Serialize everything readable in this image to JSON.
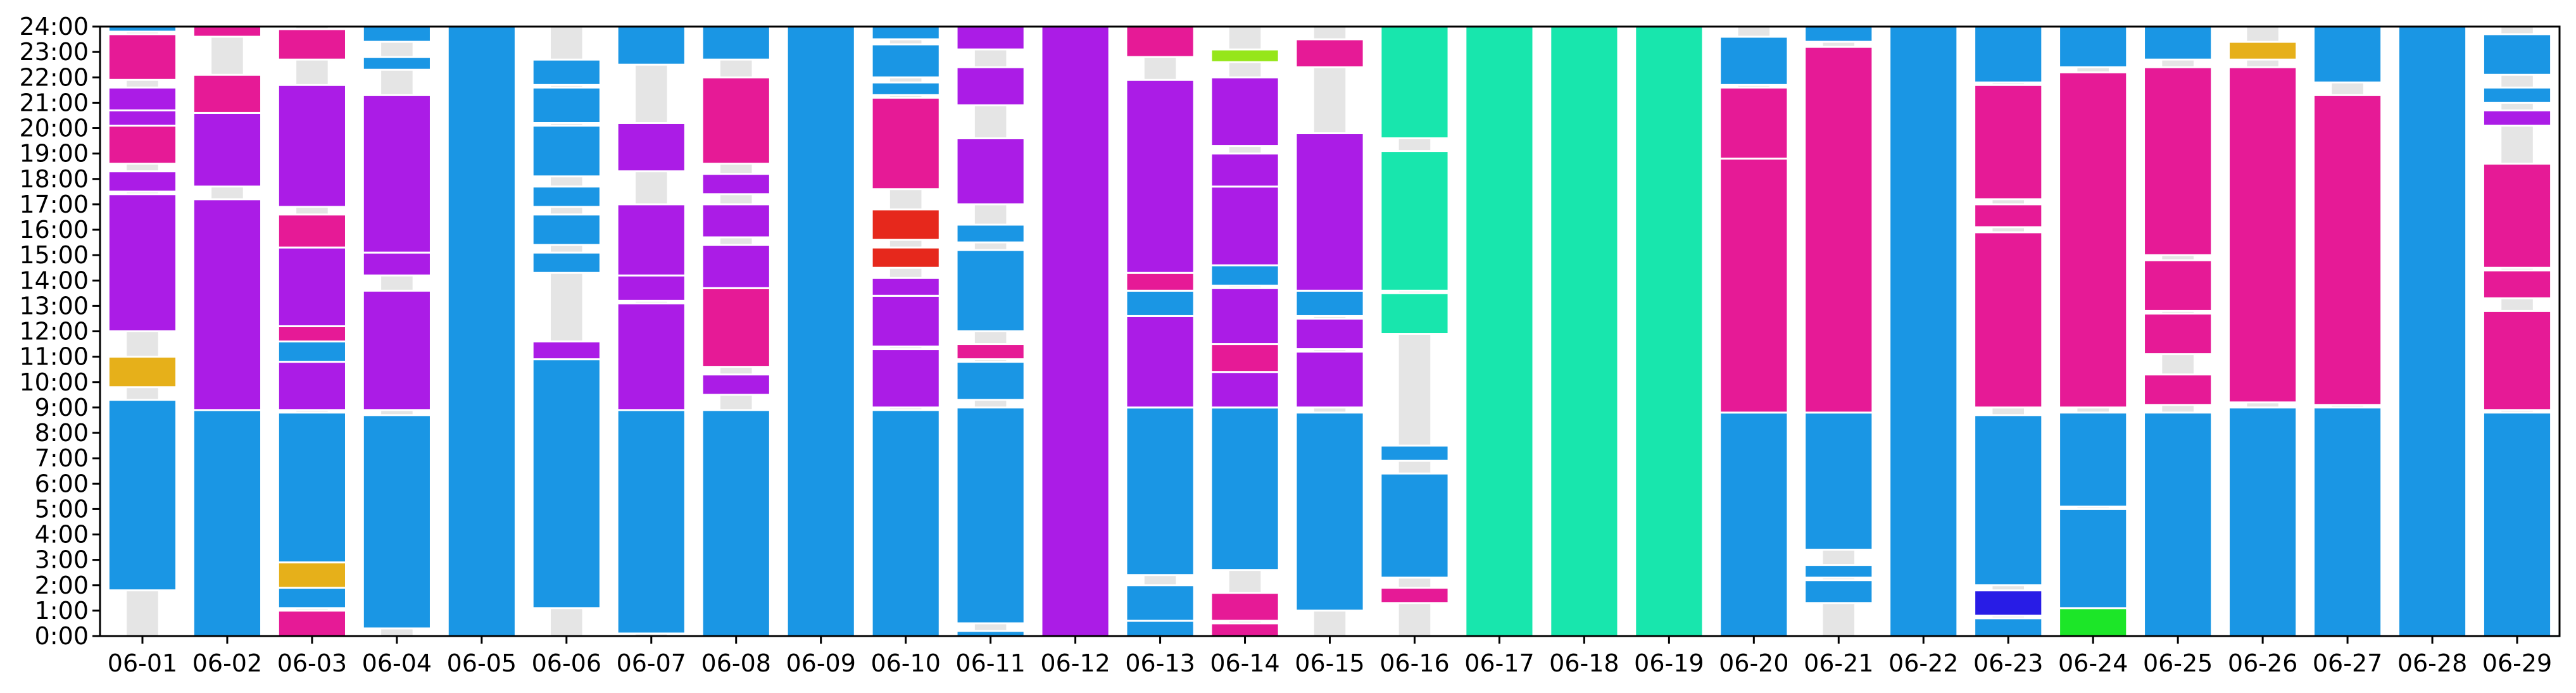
{
  "chart_data": {
    "type": "bar",
    "title": "",
    "xlabel": "",
    "ylabel": "",
    "ylim": [
      0,
      24
    ],
    "grid": false,
    "legend": "none",
    "y_ticks": [
      "0:00",
      "1:00",
      "2:00",
      "3:00",
      "4:00",
      "5:00",
      "6:00",
      "7:00",
      "8:00",
      "9:00",
      "10:00",
      "11:00",
      "12:00",
      "13:00",
      "14:00",
      "15:00",
      "16:00",
      "17:00",
      "18:00",
      "19:00",
      "20:00",
      "21:00",
      "22:00",
      "23:00",
      "24:00"
    ],
    "categories": [
      "06-01",
      "06-02",
      "06-03",
      "06-04",
      "06-05",
      "06-06",
      "06-07",
      "06-08",
      "06-09",
      "06-10",
      "06-11",
      "06-12",
      "06-13",
      "06-14",
      "06-15",
      "06-16",
      "06-17",
      "06-18",
      "06-19",
      "06-20",
      "06-21",
      "06-22",
      "06-23",
      "06-24",
      "06-25",
      "06-26",
      "06-27",
      "06-28",
      "06-29"
    ],
    "colors": {
      "blue": "#1a96e4",
      "purple": "#ab1ce6",
      "pink": "#e61a96",
      "gold": "#e6b01a",
      "red": "#e6281c",
      "lime": "#96e61a",
      "teal": "#18e6ad",
      "navy": "#281ce6",
      "green": "#1ce628",
      "gap": "#e5e5e5"
    },
    "days": [
      {
        "date": "06-01",
        "segments": [
          [
            1.8,
            9.3,
            "blue"
          ],
          [
            9.8,
            11.0,
            "gold"
          ],
          [
            12.0,
            17.4,
            "purple"
          ],
          [
            17.5,
            18.3,
            "purple"
          ],
          [
            18.6,
            20.1,
            "pink"
          ],
          [
            20.1,
            20.7,
            "purple"
          ],
          [
            20.7,
            21.6,
            "purple"
          ],
          [
            21.9,
            23.7,
            "pink"
          ],
          [
            23.8,
            24.0,
            "blue"
          ]
        ]
      },
      {
        "date": "06-02",
        "segments": [
          [
            0.0,
            8.9,
            "blue"
          ],
          [
            8.9,
            17.2,
            "purple"
          ],
          [
            17.7,
            20.6,
            "purple"
          ],
          [
            20.6,
            22.1,
            "pink"
          ],
          [
            23.6,
            24.0,
            "pink"
          ]
        ]
      },
      {
        "date": "06-03",
        "segments": [
          [
            0.0,
            1.0,
            "pink"
          ],
          [
            1.1,
            1.9,
            "blue"
          ],
          [
            1.9,
            2.9,
            "gold"
          ],
          [
            2.9,
            8.8,
            "blue"
          ],
          [
            8.9,
            10.8,
            "purple"
          ],
          [
            10.8,
            11.6,
            "blue"
          ],
          [
            11.6,
            12.2,
            "pink"
          ],
          [
            12.2,
            15.3,
            "purple"
          ],
          [
            15.3,
            16.6,
            "pink"
          ],
          [
            16.9,
            21.7,
            "purple"
          ],
          [
            22.7,
            23.9,
            "pink"
          ]
        ]
      },
      {
        "date": "06-04",
        "segments": [
          [
            0.3,
            8.7,
            "blue"
          ],
          [
            8.9,
            13.6,
            "purple"
          ],
          [
            14.2,
            15.1,
            "purple"
          ],
          [
            15.1,
            21.3,
            "purple"
          ],
          [
            22.3,
            22.8,
            "blue"
          ],
          [
            23.4,
            24.0,
            "blue"
          ]
        ]
      },
      {
        "date": "06-05",
        "segments": [
          [
            0.0,
            24.0,
            "blue"
          ]
        ]
      },
      {
        "date": "06-06",
        "segments": [
          [
            1.1,
            10.9,
            "blue"
          ],
          [
            10.9,
            11.6,
            "purple"
          ],
          [
            14.3,
            15.1,
            "blue"
          ],
          [
            15.4,
            16.6,
            "blue"
          ],
          [
            16.9,
            17.7,
            "blue"
          ],
          [
            18.1,
            20.1,
            "blue"
          ],
          [
            20.2,
            21.6,
            "blue"
          ],
          [
            21.7,
            22.7,
            "blue"
          ]
        ]
      },
      {
        "date": "06-07",
        "segments": [
          [
            0.1,
            8.9,
            "blue"
          ],
          [
            8.9,
            13.1,
            "purple"
          ],
          [
            13.2,
            14.2,
            "purple"
          ],
          [
            14.2,
            17.0,
            "purple"
          ],
          [
            18.3,
            20.2,
            "purple"
          ],
          [
            22.5,
            24.0,
            "blue"
          ]
        ]
      },
      {
        "date": "06-08",
        "segments": [
          [
            0.0,
            8.9,
            "blue"
          ],
          [
            9.5,
            10.3,
            "purple"
          ],
          [
            10.6,
            13.7,
            "pink"
          ],
          [
            13.7,
            15.4,
            "purple"
          ],
          [
            15.7,
            17.0,
            "purple"
          ],
          [
            17.4,
            18.2,
            "purple"
          ],
          [
            18.6,
            22.0,
            "pink"
          ],
          [
            22.7,
            24.0,
            "blue"
          ]
        ]
      },
      {
        "date": "06-09",
        "segments": [
          [
            0.0,
            24.0,
            "blue"
          ]
        ]
      },
      {
        "date": "06-10",
        "segments": [
          [
            0.0,
            8.9,
            "blue"
          ],
          [
            9.0,
            11.3,
            "purple"
          ],
          [
            11.4,
            13.4,
            "purple"
          ],
          [
            13.4,
            14.1,
            "purple"
          ],
          [
            14.5,
            15.3,
            "red"
          ],
          [
            15.6,
            16.8,
            "red"
          ],
          [
            17.6,
            21.2,
            "pink"
          ],
          [
            21.3,
            21.8,
            "blue"
          ],
          [
            22.0,
            23.3,
            "blue"
          ],
          [
            23.5,
            24.0,
            "blue"
          ]
        ]
      },
      {
        "date": "06-11",
        "segments": [
          [
            0.0,
            0.2,
            "blue"
          ],
          [
            0.5,
            9.0,
            "blue"
          ],
          [
            9.3,
            10.8,
            "blue"
          ],
          [
            10.9,
            11.5,
            "pink"
          ],
          [
            12.0,
            15.2,
            "blue"
          ],
          [
            15.5,
            16.2,
            "blue"
          ],
          [
            17.0,
            19.6,
            "purple"
          ],
          [
            20.9,
            22.4,
            "purple"
          ],
          [
            23.1,
            24.0,
            "purple"
          ]
        ]
      },
      {
        "date": "06-12",
        "segments": [
          [
            0.0,
            24.0,
            "purple"
          ]
        ]
      },
      {
        "date": "06-13",
        "segments": [
          [
            0.0,
            0.6,
            "blue"
          ],
          [
            0.6,
            2.0,
            "blue"
          ],
          [
            2.4,
            9.0,
            "blue"
          ],
          [
            9.0,
            12.6,
            "purple"
          ],
          [
            12.6,
            13.6,
            "blue"
          ],
          [
            13.6,
            14.3,
            "pink"
          ],
          [
            14.3,
            21.9,
            "purple"
          ],
          [
            22.8,
            24.0,
            "pink"
          ]
        ]
      },
      {
        "date": "06-14",
        "segments": [
          [
            0.0,
            0.5,
            "pink"
          ],
          [
            0.6,
            1.7,
            "pink"
          ],
          [
            2.6,
            9.0,
            "blue"
          ],
          [
            9.0,
            10.4,
            "purple"
          ],
          [
            10.4,
            11.5,
            "pink"
          ],
          [
            11.5,
            13.7,
            "purple"
          ],
          [
            13.8,
            14.6,
            "blue"
          ],
          [
            14.6,
            17.7,
            "purple"
          ],
          [
            17.7,
            19.0,
            "purple"
          ],
          [
            19.3,
            22.0,
            "purple"
          ],
          [
            22.6,
            23.1,
            "lime"
          ]
        ]
      },
      {
        "date": "06-15",
        "segments": [
          [
            1.0,
            8.8,
            "blue"
          ],
          [
            9.0,
            11.2,
            "purple"
          ],
          [
            11.3,
            12.5,
            "purple"
          ],
          [
            12.6,
            13.6,
            "blue"
          ],
          [
            13.6,
            19.8,
            "purple"
          ],
          [
            22.4,
            23.5,
            "pink"
          ]
        ]
      },
      {
        "date": "06-16",
        "segments": [
          [
            1.3,
            1.9,
            "pink"
          ],
          [
            2.3,
            6.4,
            "blue"
          ],
          [
            6.9,
            7.5,
            "blue"
          ],
          [
            11.9,
            13.5,
            "teal"
          ],
          [
            13.6,
            19.1,
            "teal"
          ],
          [
            19.6,
            24.0,
            "teal"
          ]
        ]
      },
      {
        "date": "06-17",
        "segments": [
          [
            0.0,
            24.0,
            "teal"
          ]
        ]
      },
      {
        "date": "06-18",
        "segments": [
          [
            0.0,
            24.0,
            "teal"
          ]
        ]
      },
      {
        "date": "06-19",
        "segments": [
          [
            0.0,
            24.0,
            "teal"
          ]
        ]
      },
      {
        "date": "06-20",
        "segments": [
          [
            0.0,
            8.8,
            "blue"
          ],
          [
            8.8,
            18.8,
            "pink"
          ],
          [
            18.8,
            21.6,
            "pink"
          ],
          [
            21.7,
            23.6,
            "blue"
          ]
        ]
      },
      {
        "date": "06-21",
        "segments": [
          [
            1.3,
            2.2,
            "blue"
          ],
          [
            2.3,
            2.8,
            "blue"
          ],
          [
            3.4,
            8.8,
            "blue"
          ],
          [
            8.8,
            23.2,
            "pink"
          ],
          [
            23.4,
            24.0,
            "blue"
          ]
        ]
      },
      {
        "date": "06-22",
        "segments": [
          [
            0.0,
            24.0,
            "blue"
          ]
        ]
      },
      {
        "date": "06-23",
        "segments": [
          [
            0.0,
            0.7,
            "blue"
          ],
          [
            0.8,
            1.8,
            "navy"
          ],
          [
            2.0,
            8.7,
            "blue"
          ],
          [
            9.0,
            15.9,
            "pink"
          ],
          [
            16.1,
            17.0,
            "pink"
          ],
          [
            17.2,
            21.7,
            "pink"
          ],
          [
            21.8,
            24.0,
            "blue"
          ]
        ]
      },
      {
        "date": "06-24",
        "segments": [
          [
            0.0,
            1.1,
            "green"
          ],
          [
            1.1,
            5.0,
            "blue"
          ],
          [
            5.1,
            8.8,
            "blue"
          ],
          [
            9.0,
            22.2,
            "pink"
          ],
          [
            22.4,
            24.0,
            "blue"
          ]
        ]
      },
      {
        "date": "06-25",
        "segments": [
          [
            0.0,
            8.8,
            "blue"
          ],
          [
            9.1,
            10.3,
            "pink"
          ],
          [
            11.1,
            12.7,
            "pink"
          ],
          [
            12.8,
            14.8,
            "pink"
          ],
          [
            15.0,
            22.4,
            "pink"
          ],
          [
            22.7,
            24.0,
            "blue"
          ]
        ]
      },
      {
        "date": "06-26",
        "segments": [
          [
            0.0,
            9.0,
            "blue"
          ],
          [
            9.2,
            22.4,
            "pink"
          ],
          [
            22.7,
            23.4,
            "gold"
          ]
        ]
      },
      {
        "date": "06-27",
        "segments": [
          [
            0.0,
            9.0,
            "blue"
          ],
          [
            9.1,
            21.3,
            "pink"
          ],
          [
            21.8,
            24.0,
            "blue"
          ]
        ]
      },
      {
        "date": "06-28",
        "segments": [
          [
            0.0,
            24.0,
            "blue"
          ]
        ]
      },
      {
        "date": "06-29",
        "segments": [
          [
            0.0,
            8.8,
            "blue"
          ],
          [
            8.9,
            12.8,
            "pink"
          ],
          [
            13.3,
            14.4,
            "pink"
          ],
          [
            14.5,
            18.6,
            "pink"
          ],
          [
            20.1,
            20.7,
            "purple"
          ],
          [
            21.0,
            21.6,
            "blue"
          ],
          [
            22.1,
            23.7,
            "blue"
          ]
        ]
      }
    ]
  }
}
